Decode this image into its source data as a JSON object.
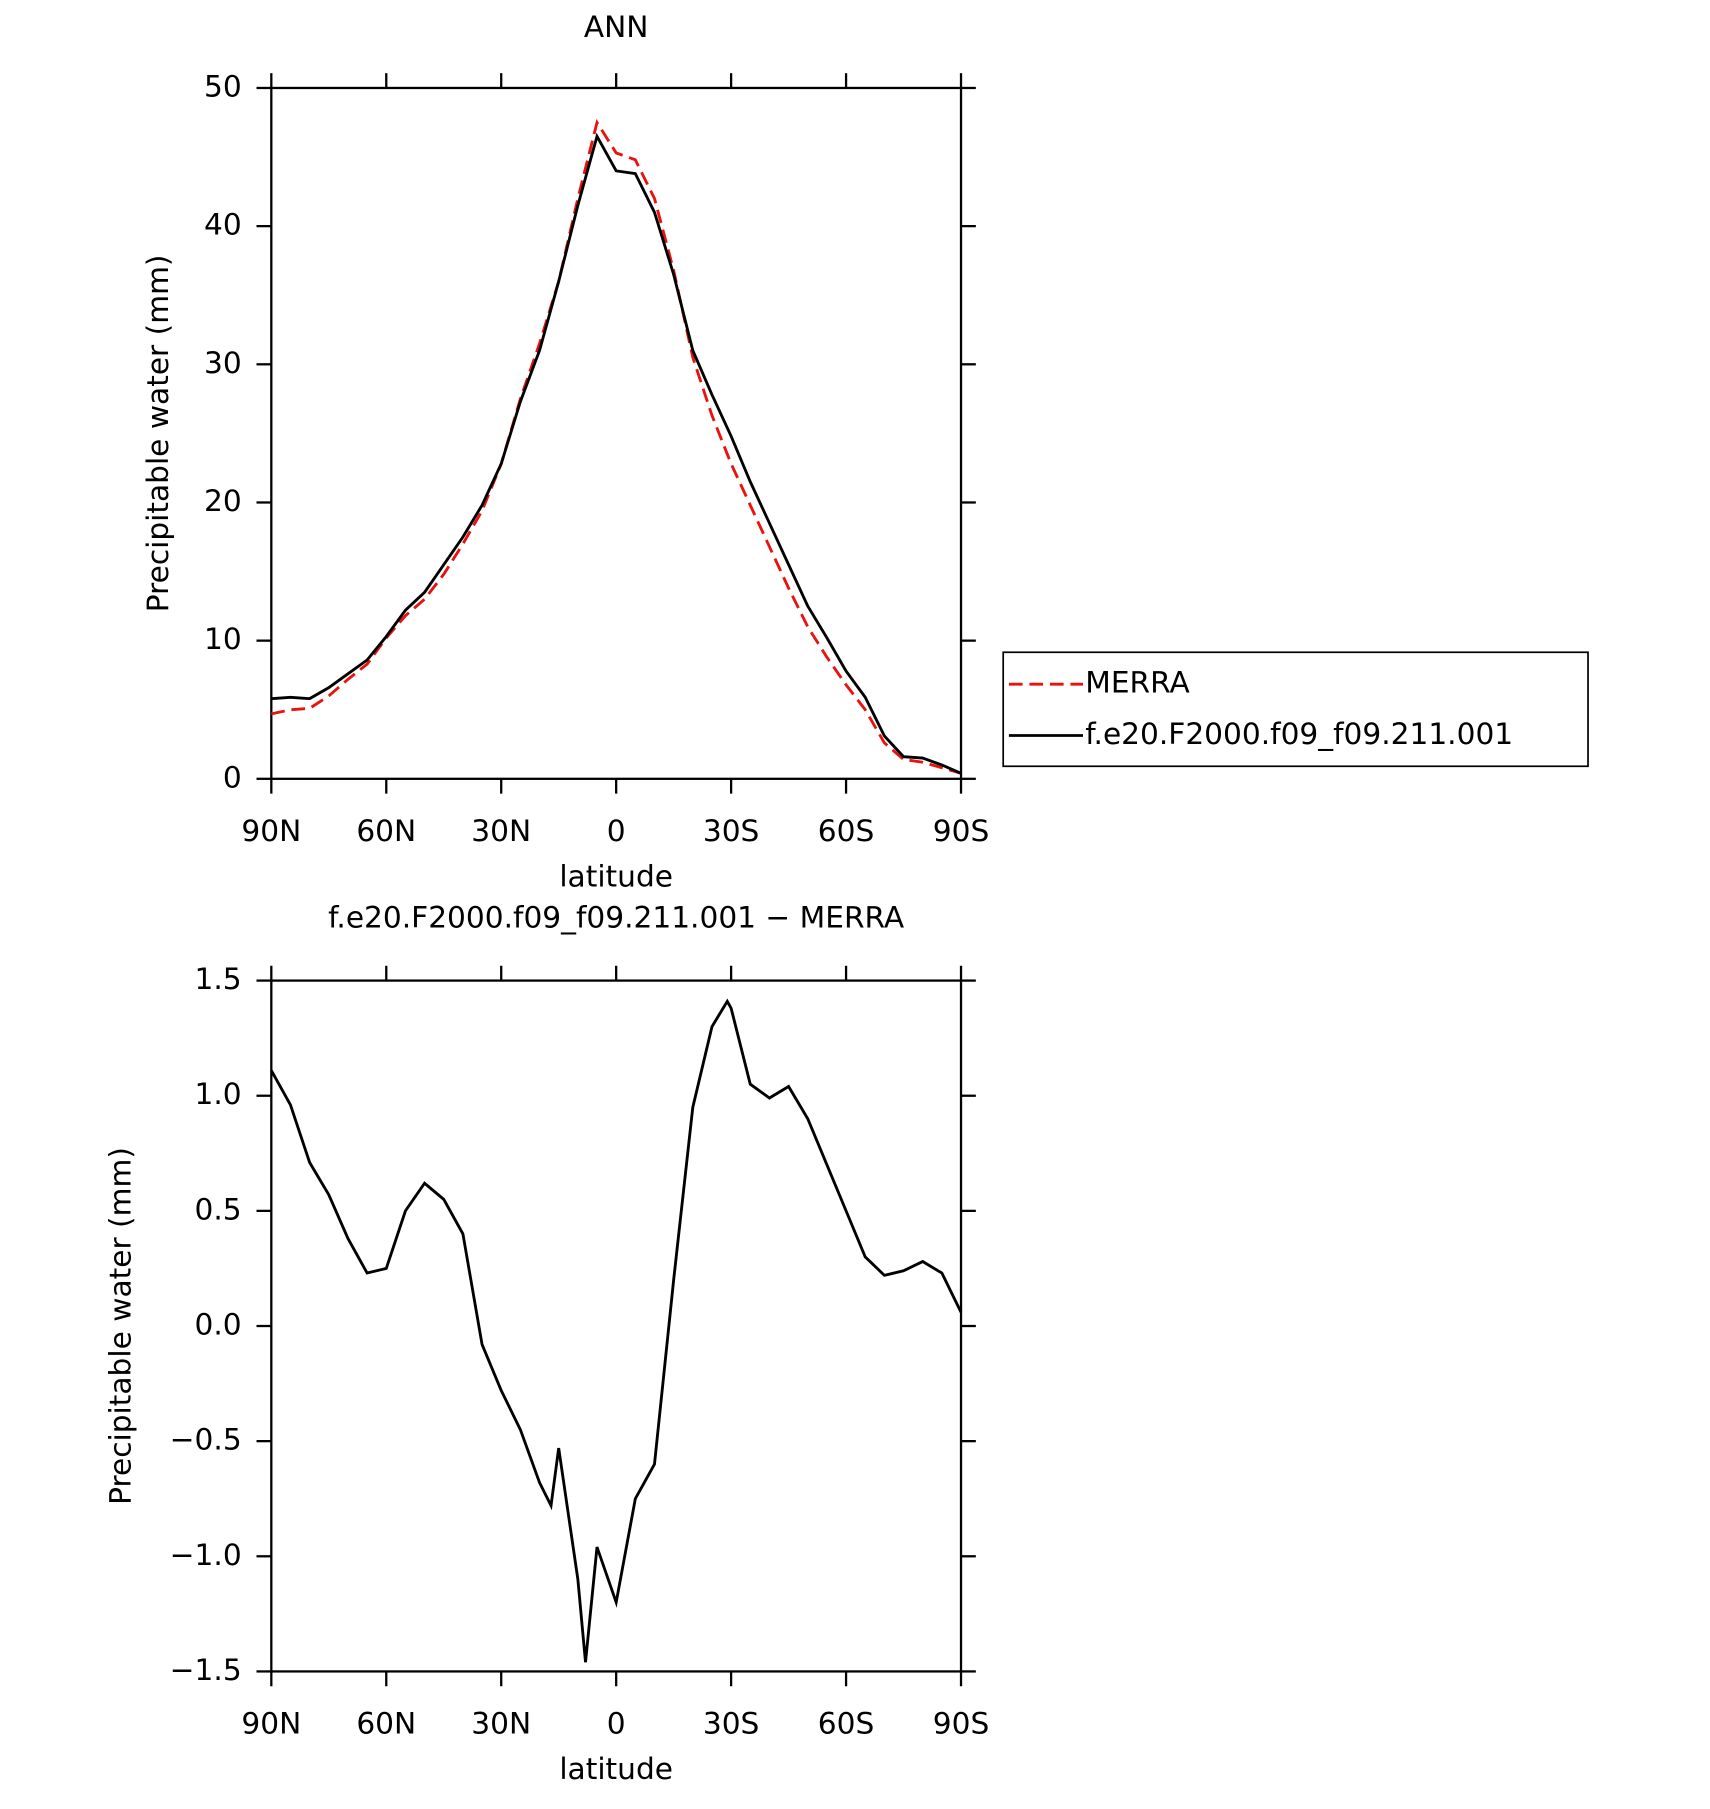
{
  "chart_data": [
    {
      "type": "line",
      "title": "ANN",
      "x_label": "latitude",
      "y_label": "Precipitable water (mm)",
      "x": [
        90,
        85,
        80,
        75,
        70,
        65,
        60,
        55,
        50,
        45,
        40,
        35,
        30,
        25,
        20,
        15,
        10,
        5,
        0,
        -5,
        -10,
        -15,
        -20,
        -25,
        -30,
        -35,
        -40,
        -45,
        -50,
        -55,
        -60,
        -65,
        -70,
        -75,
        -80,
        -85,
        -90
      ],
      "series": [
        {
          "name": "MERRA",
          "color": "#e8120f",
          "linestyle": "dashed",
          "values": [
            4.7,
            5.0,
            5.1,
            6.0,
            7.2,
            8.3,
            10.2,
            11.8,
            13.0,
            14.8,
            17.0,
            19.4,
            22.8,
            27.5,
            31.5,
            36,
            42,
            47.5,
            45.3,
            44.8,
            42,
            36.8,
            30.5,
            26.3,
            22.8,
            19.8,
            16.8,
            13.8,
            11,
            8.8,
            6.8,
            5,
            2.6,
            1.4,
            1.2,
            0.8,
            0.4
          ]
        },
        {
          "name": "f.e20.F2000.f09_f09.211.001",
          "color": "#000000",
          "linestyle": "solid",
          "values": [
            5.8,
            5.9,
            5.8,
            6.6,
            7.6,
            8.6,
            10.3,
            12.2,
            13.5,
            15.5,
            17.5,
            19.8,
            22.8,
            27.3,
            31,
            36,
            41.5,
            46.5,
            44,
            43.8,
            41,
            36.5,
            31,
            27.8,
            24.8,
            21.5,
            18.5,
            15.5,
            12.5,
            10.2,
            7.8,
            5.9,
            3.1,
            1.6,
            1.5,
            1.0,
            0.4
          ]
        }
      ],
      "xlim": [
        90,
        -90
      ],
      "xticks": [
        {
          "value": 90,
          "label": "90N"
        },
        {
          "value": 60,
          "label": "60N"
        },
        {
          "value": 30,
          "label": "30N"
        },
        0,
        {
          "value": -30,
          "label": "30S"
        },
        {
          "value": -60,
          "label": "60S"
        },
        {
          "value": -90,
          "label": "90S"
        }
      ],
      "ylim": [
        0,
        50
      ],
      "yticks": [
        0,
        10,
        20,
        30,
        40,
        50
      ],
      "legend": "right"
    },
    {
      "type": "line",
      "title": "f.e20.F2000.f09_f09.211.001 − MERRA",
      "x_label": "latitude",
      "y_label": "Precipitable water (mm)",
      "x": [
        90,
        85,
        80,
        75,
        70,
        65,
        60,
        55,
        50,
        45,
        40,
        35,
        30,
        25,
        20,
        17,
        15,
        10,
        8,
        5,
        0,
        -5,
        -10,
        -15,
        -20,
        -25,
        -29,
        -30,
        -35,
        -40,
        -45,
        -50,
        -55,
        -60,
        -65,
        -70,
        -75,
        -80,
        -85,
        -90
      ],
      "series": [
        {
          "color": "#000000",
          "linestyle": "solid",
          "values": [
            1.11,
            0.96,
            0.71,
            0.57,
            0.38,
            0.23,
            0.25,
            0.5,
            0.62,
            0.55,
            0.4,
            -0.08,
            -0.28,
            -0.45,
            -0.68,
            -0.78,
            -0.53,
            -1.1,
            -1.46,
            -0.96,
            -1.2,
            -0.75,
            -0.6,
            0.2,
            0.95,
            1.3,
            1.41,
            1.38,
            1.05,
            0.99,
            1.04,
            0.9,
            0.7,
            0.5,
            0.3,
            0.22,
            0.24,
            0.28,
            0.23,
            0.06
          ]
        }
      ],
      "xlim": [
        90,
        -90
      ],
      "xticks": [
        {
          "value": 90,
          "label": "90N"
        },
        {
          "value": 60,
          "label": "60N"
        },
        {
          "value": 30,
          "label": "30N"
        },
        0,
        {
          "value": -30,
          "label": "30S"
        },
        {
          "value": -60,
          "label": "60S"
        },
        {
          "value": -90,
          "label": "90S"
        }
      ],
      "ylim": [
        -1.5,
        1.5
      ],
      "yticks": [
        {
          "value": -1.5,
          "label": "−1.5"
        },
        {
          "value": -1.0,
          "label": "−1.0"
        },
        {
          "value": -0.5,
          "label": "−0.5"
        },
        {
          "value": 0,
          "label": "0.0"
        },
        0.5,
        {
          "value": 1.0,
          "label": "1.0"
        },
        1.5
      ]
    }
  ]
}
